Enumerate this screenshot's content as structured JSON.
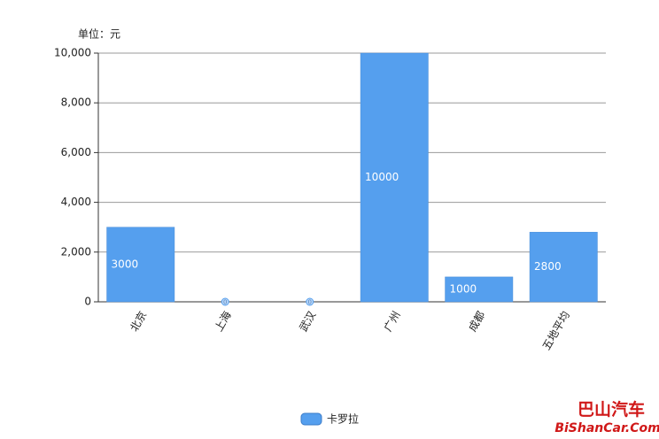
{
  "chart_data": {
    "type": "bar",
    "unit_label": "单位：元",
    "categories": [
      "北京",
      "上海",
      "武汉",
      "广州",
      "成都",
      "五地平均"
    ],
    "series": [
      {
        "name": "卡罗拉",
        "color": "#559fee",
        "values": [
          3000,
          0,
          0,
          10000,
          1000,
          2800
        ]
      }
    ],
    "ylim": [
      0,
      10000
    ],
    "yticks": [
      0,
      {
        "value": 2000,
        "label": "2,000"
      },
      {
        "value": 4000,
        "label": "4,000"
      },
      {
        "value": 6000,
        "label": "6,000"
      },
      {
        "value": 8000,
        "label": "8,000"
      },
      {
        "value": 10000,
        "label": "10,000"
      }
    ],
    "grid": true,
    "watermark": {
      "title": "巴山汽车",
      "url": "BiShanCar.Com"
    }
  }
}
